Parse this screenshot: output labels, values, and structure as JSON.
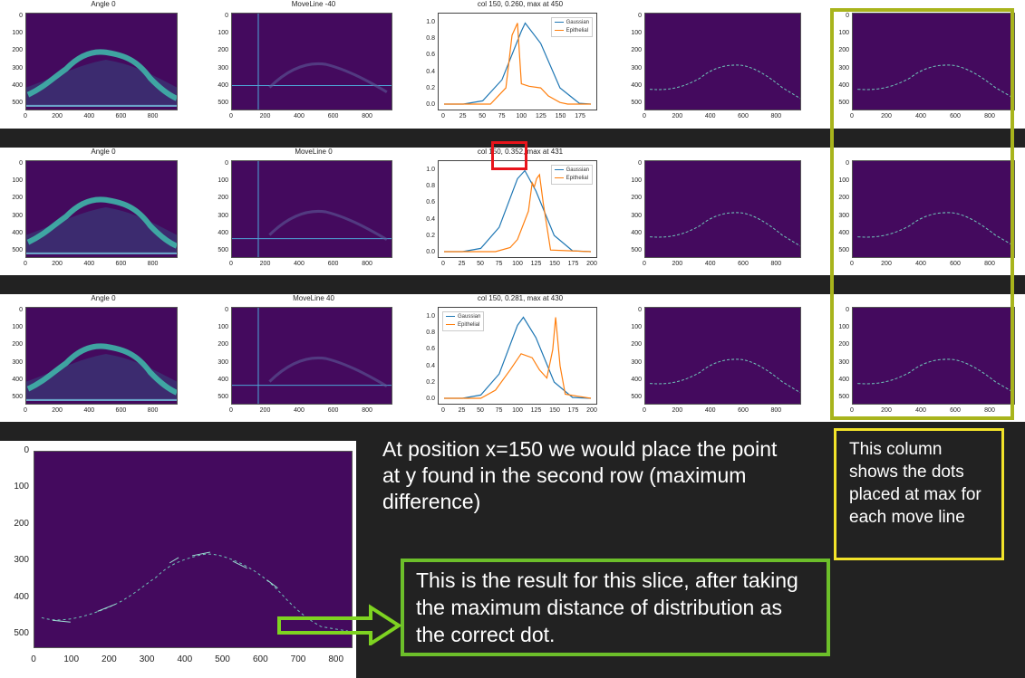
{
  "rows": [
    {
      "panels": [
        {
          "title": "Angle 0",
          "yticks": [
            "0",
            "100",
            "200",
            "300",
            "400",
            "500"
          ],
          "xticks": [
            "0",
            "200",
            "400",
            "600",
            "800"
          ]
        },
        {
          "title": "MoveLine -40",
          "yticks": [
            "0",
            "100",
            "200",
            "300",
            "400",
            "500"
          ],
          "xticks": [
            "0",
            "200",
            "400",
            "600",
            "800"
          ]
        },
        {
          "title": "col 150, 0.260, max at 450",
          "yticks": [
            "0.0",
            "0.2",
            "0.4",
            "0.6",
            "0.8",
            "1.0"
          ],
          "xticks": [
            "0",
            "25",
            "50",
            "75",
            "100",
            "125",
            "150",
            "175"
          ],
          "legend": [
            "Gaussian",
            "Epithelial"
          ]
        },
        {
          "title": "",
          "yticks": [
            "0",
            "100",
            "200",
            "300",
            "400",
            "500"
          ],
          "xticks": [
            "0",
            "200",
            "400",
            "600",
            "800"
          ]
        },
        {
          "title": "",
          "yticks": [
            "0",
            "100",
            "200",
            "300",
            "400",
            "500"
          ],
          "xticks": [
            "0",
            "200",
            "400",
            "600",
            "800"
          ]
        }
      ]
    },
    {
      "panels": [
        {
          "title": "Angle 0",
          "yticks": [
            "0",
            "100",
            "200",
            "300",
            "400",
            "500"
          ],
          "xticks": [
            "0",
            "200",
            "400",
            "600",
            "800"
          ]
        },
        {
          "title": "MoveLine 0",
          "yticks": [
            "0",
            "100",
            "200",
            "300",
            "400",
            "500"
          ],
          "xticks": [
            "0",
            "200",
            "400",
            "600",
            "800"
          ]
        },
        {
          "title": "col 150, 0.352, max at 431",
          "yticks": [
            "0.0",
            "0.2",
            "0.4",
            "0.6",
            "0.8",
            "1.0"
          ],
          "xticks": [
            "0",
            "25",
            "50",
            "75",
            "100",
            "125",
            "150",
            "175",
            "200"
          ],
          "legend": [
            "Gaussian",
            "Epithelial"
          ]
        },
        {
          "title": "",
          "yticks": [
            "0",
            "100",
            "200",
            "300",
            "400",
            "500"
          ],
          "xticks": [
            "0",
            "200",
            "400",
            "600",
            "800"
          ]
        },
        {
          "title": "",
          "yticks": [
            "0",
            "100",
            "200",
            "300",
            "400",
            "500"
          ],
          "xticks": [
            "0",
            "200",
            "400",
            "600",
            "800"
          ]
        }
      ]
    },
    {
      "panels": [
        {
          "title": "Angle 0",
          "yticks": [
            "0",
            "100",
            "200",
            "300",
            "400",
            "500"
          ],
          "xticks": [
            "0",
            "200",
            "400",
            "600",
            "800"
          ]
        },
        {
          "title": "MoveLine 40",
          "yticks": [
            "0",
            "100",
            "200",
            "300",
            "400",
            "500"
          ],
          "xticks": [
            "0",
            "200",
            "400",
            "600",
            "800"
          ]
        },
        {
          "title": "col 150, 0.281, max at 430",
          "yticks": [
            "0.0",
            "0.2",
            "0.4",
            "0.6",
            "0.8",
            "1.0"
          ],
          "xticks": [
            "0",
            "25",
            "50",
            "75",
            "100",
            "125",
            "150",
            "175",
            "200"
          ],
          "legend": [
            "Gaussian",
            "Epithelial"
          ]
        },
        {
          "title": "",
          "yticks": [
            "0",
            "100",
            "200",
            "300",
            "400",
            "500"
          ],
          "xticks": [
            "0",
            "200",
            "400",
            "600",
            "800"
          ]
        },
        {
          "title": "",
          "yticks": [
            "0",
            "100",
            "200",
            "300",
            "400",
            "500"
          ],
          "xticks": [
            "0",
            "200",
            "400",
            "600",
            "800"
          ]
        }
      ]
    }
  ],
  "result_plot": {
    "yticks": [
      "0",
      "100",
      "200",
      "300",
      "400",
      "500"
    ],
    "xticks": [
      "0",
      "100",
      "200",
      "300",
      "400",
      "500",
      "600",
      "700",
      "800"
    ]
  },
  "annotations": {
    "position_note": "At position x=150 we would place the point at y found in the second row (maximum difference)",
    "column_note": "This column shows the dots placed at max for each move line",
    "result_note": "This is the result for this slice, after taking the maximum distance of distribution as the correct dot."
  },
  "colors": {
    "background": "#222222",
    "image_bg": "#440a5e",
    "gaussian": "#1f77b4",
    "epithelial": "#ff7f0e",
    "highlight_red": "#e8141b",
    "column_frame": "#a8b41c",
    "column_note_frame": "#f2e32a",
    "result_frame": "#6cbf2a",
    "arrow": "#7ed321"
  },
  "chart_data": [
    {
      "type": "line",
      "title": "col 150, 0.260, max at 450",
      "series": [
        {
          "name": "Gaussian",
          "x": [
            0,
            25,
            50,
            75,
            100,
            105,
            125,
            150,
            175,
            190
          ],
          "y": [
            0,
            0,
            0.04,
            0.3,
            0.9,
            1.0,
            0.75,
            0.2,
            0.01,
            0
          ]
        },
        {
          "name": "Epithelial",
          "x": [
            0,
            60,
            80,
            88,
            95,
            100,
            110,
            125,
            135,
            150,
            160,
            190
          ],
          "y": [
            0,
            0,
            0.2,
            0.85,
            1.0,
            0.25,
            0.22,
            0.2,
            0.1,
            0.02,
            0,
            0
          ]
        }
      ],
      "xlim": [
        0,
        190
      ],
      "ylim": [
        0,
        1.05
      ]
    },
    {
      "type": "line",
      "title": "col 150, 0.352, max at 431",
      "series": [
        {
          "name": "Gaussian",
          "x": [
            0,
            25,
            50,
            75,
            100,
            110,
            125,
            150,
            175,
            200
          ],
          "y": [
            0,
            0,
            0.04,
            0.3,
            0.9,
            1.0,
            0.75,
            0.2,
            0.01,
            0
          ]
        },
        {
          "name": "Epithelial",
          "x": [
            0,
            70,
            90,
            100,
            115,
            120,
            123,
            126,
            130,
            135,
            145,
            200
          ],
          "y": [
            0,
            0,
            0.05,
            0.15,
            0.5,
            0.85,
            0.8,
            0.9,
            0.95,
            0.6,
            0.02,
            0
          ]
        }
      ],
      "xlim": [
        0,
        200
      ],
      "ylim": [
        0,
        1.05
      ]
    },
    {
      "type": "line",
      "title": "col 150, 0.281, max at 430",
      "series": [
        {
          "name": "Gaussian",
          "x": [
            0,
            25,
            50,
            75,
            100,
            108,
            125,
            150,
            175,
            200
          ],
          "y": [
            0,
            0,
            0.04,
            0.3,
            0.9,
            1.0,
            0.75,
            0.2,
            0.01,
            0
          ]
        },
        {
          "name": "Epithelial",
          "x": [
            0,
            50,
            70,
            90,
            105,
            120,
            130,
            140,
            148,
            152,
            158,
            165,
            200
          ],
          "y": [
            0,
            0,
            0.1,
            0.35,
            0.55,
            0.5,
            0.35,
            0.25,
            0.6,
            1.0,
            0.4,
            0.05,
            0
          ]
        }
      ],
      "xlim": [
        0,
        200
      ],
      "ylim": [
        0,
        1.05
      ]
    }
  ]
}
